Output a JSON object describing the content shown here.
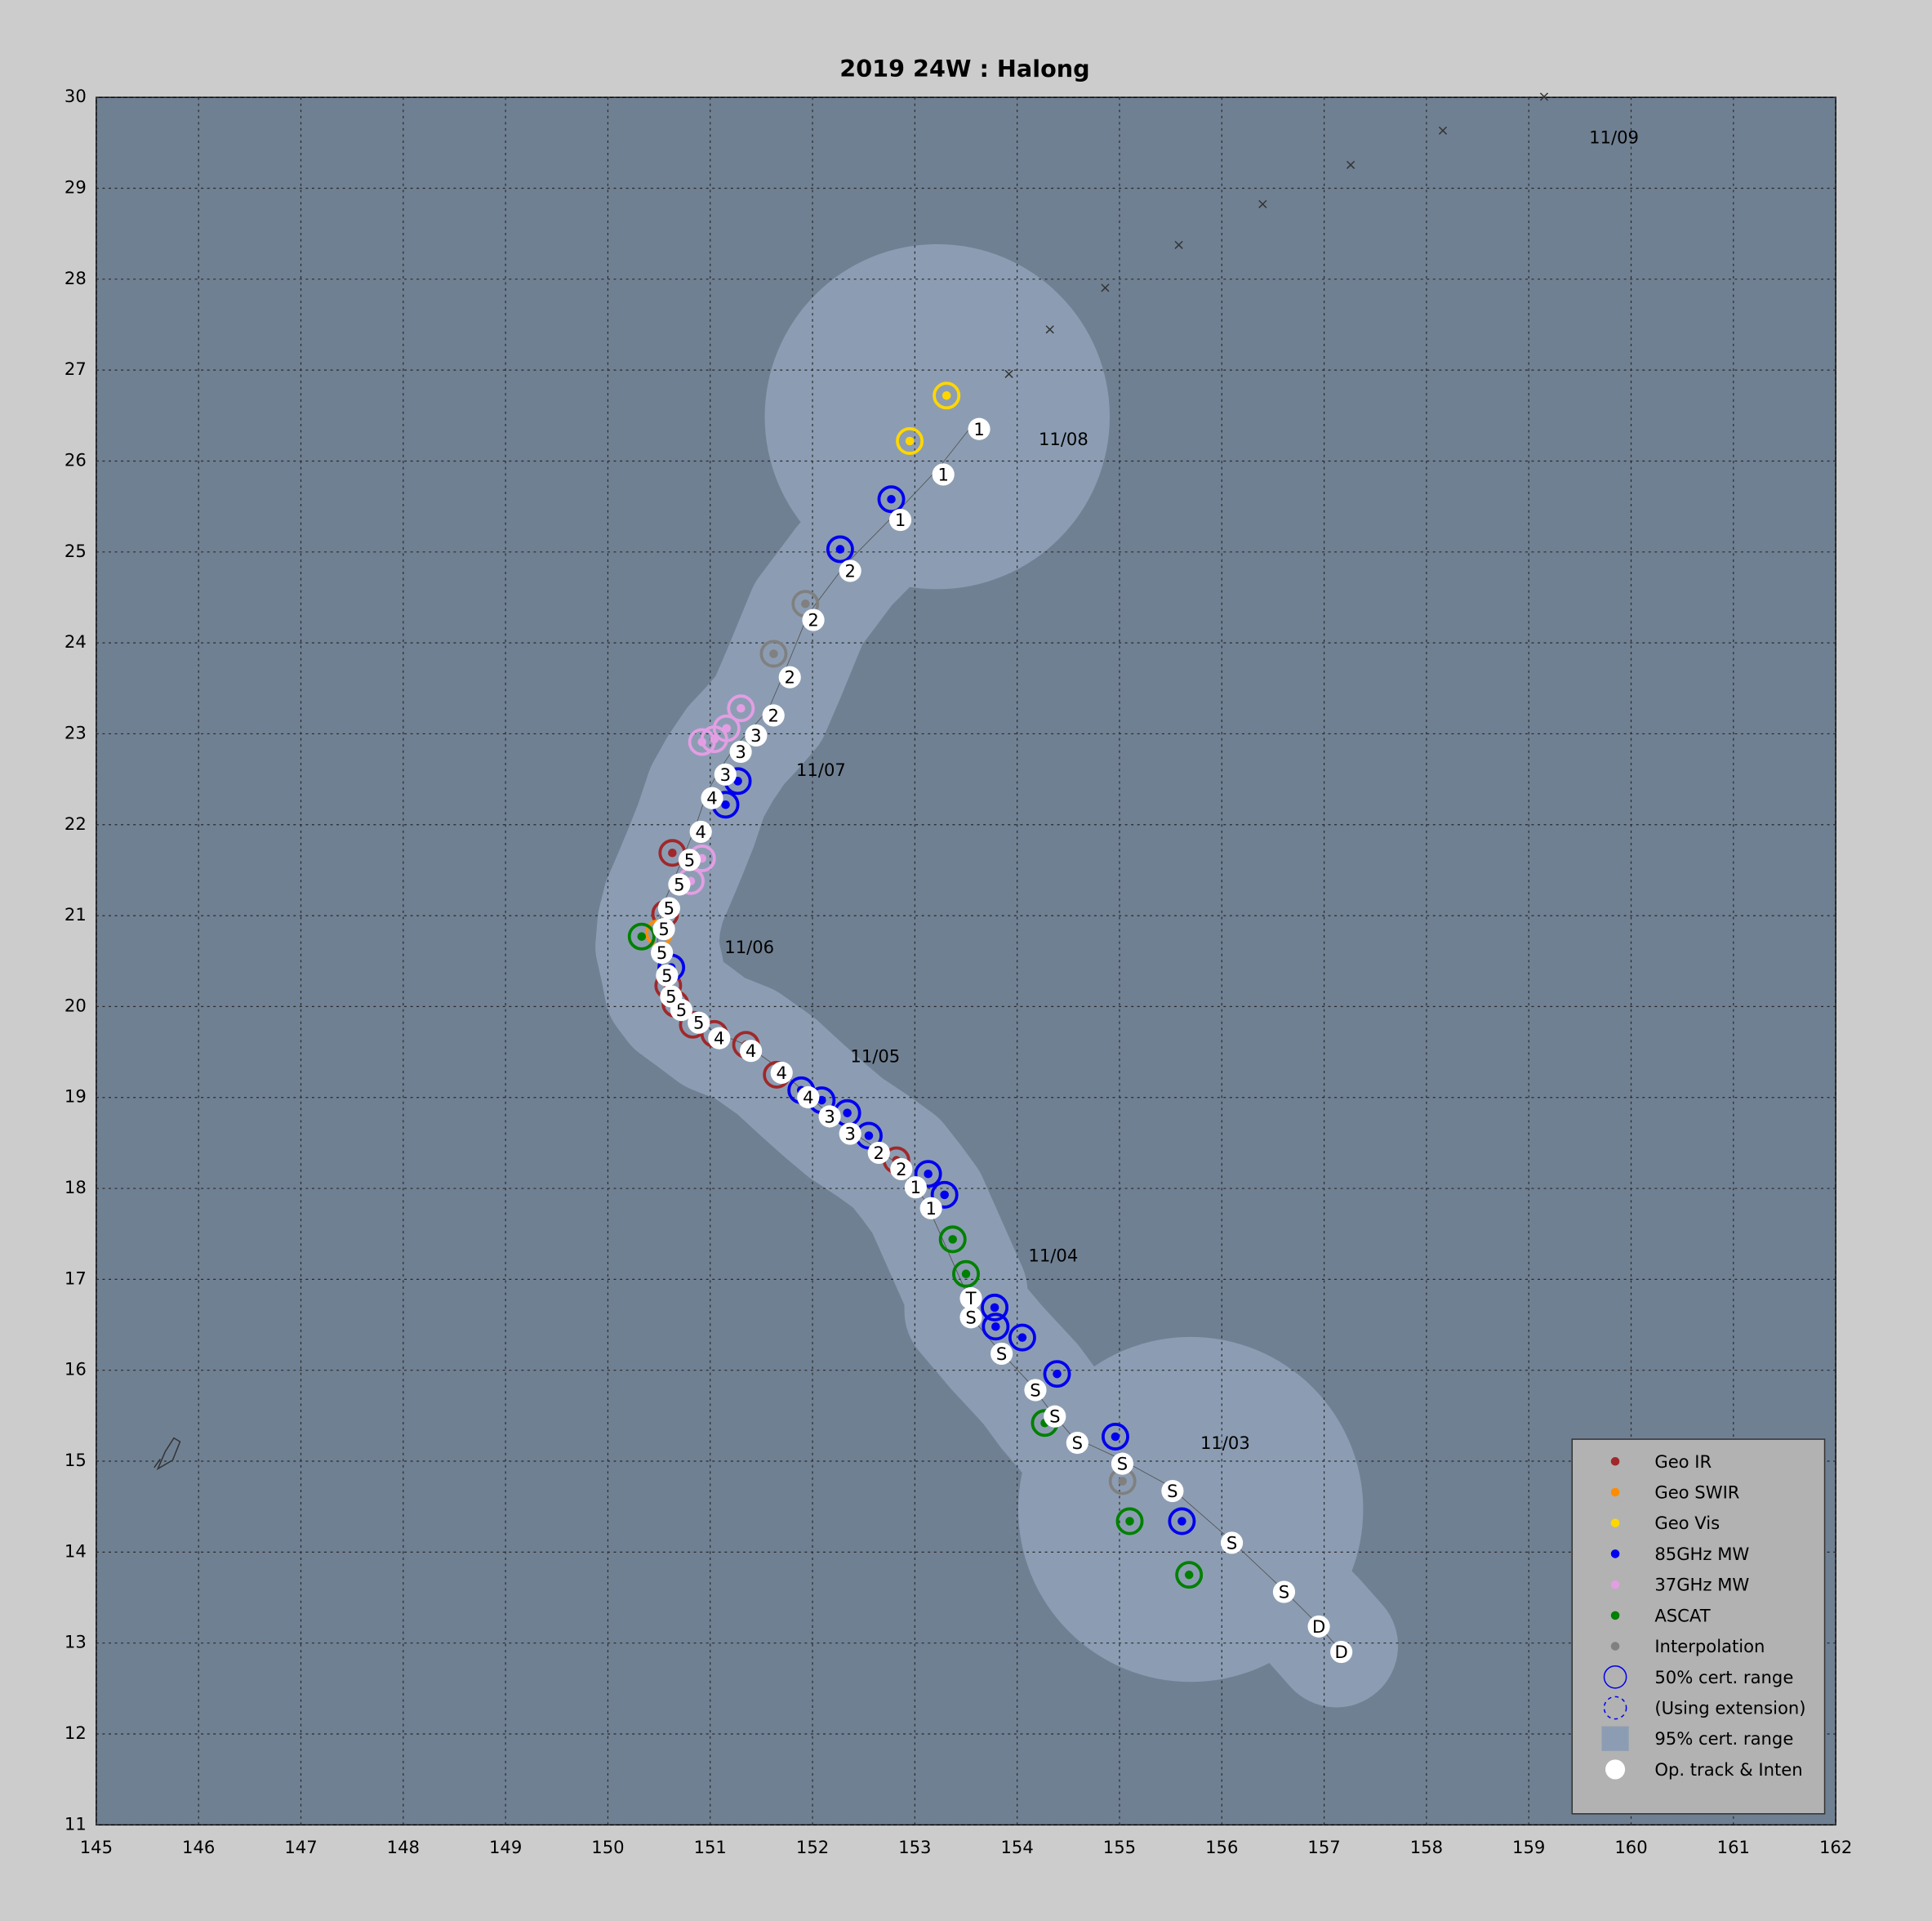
{
  "chart_data": {
    "type": "track",
    "title": "2019  24W :  Halong",
    "xlim": [
      145,
      162
    ],
    "ylim": [
      11,
      30
    ],
    "xticks": [
      145,
      146,
      147,
      148,
      149,
      150,
      151,
      152,
      153,
      154,
      155,
      156,
      157,
      158,
      159,
      160,
      161,
      162
    ],
    "yticks": [
      11,
      12,
      13,
      14,
      15,
      16,
      17,
      18,
      19,
      20,
      21,
      22,
      23,
      24,
      25,
      26,
      27,
      28,
      29,
      30
    ],
    "grid": true,
    "legend": "lower right",
    "series": [
      {
        "name": "Geo IR",
        "color": "#a0282a",
        "x": [
          152.82,
          151.65,
          151.35,
          151.04,
          150.83,
          150.66,
          150.59,
          150.56,
          150.63
        ],
        "y": [
          18.31,
          19.25,
          19.58,
          19.7,
          19.8,
          20.03,
          20.23,
          21.02,
          21.69
        ]
      },
      {
        "name": "Geo SWIR",
        "color": "#ff8c00",
        "x": [
          150.5
        ],
        "y": [
          20.81
        ]
      },
      {
        "name": "Geo Vis",
        "color": "#ffd700",
        "x": [
          153.31,
          152.95
        ],
        "y": [
          26.72,
          26.22
        ]
      },
      {
        "name": "85GHz MW",
        "color": "#0000ee",
        "x": [
          152.77,
          152.27,
          151.27,
          151.15,
          150.62,
          151.89,
          152.09,
          152.34,
          152.55,
          153.13,
          153.29,
          153.78,
          153.79,
          154.05,
          154.39,
          154.96,
          155.61
        ],
        "y": [
          25.58,
          25.03,
          22.48,
          22.22,
          20.43,
          19.08,
          18.97,
          18.83,
          18.58,
          18.16,
          17.93,
          16.69,
          16.48,
          16.36,
          15.96,
          15.27,
          14.34
        ]
      },
      {
        "name": "37GHz MW",
        "color": "#e39ee3",
        "x": [
          151.3,
          151.16,
          151.04,
          150.92,
          150.81,
          150.92
        ],
        "y": [
          23.28,
          23.06,
          22.94,
          22.91,
          21.38,
          21.63
        ]
      },
      {
        "name": "ASCAT",
        "color": "#008000",
        "x": [
          153.37,
          153.5,
          154.27,
          155.1,
          155.68,
          150.33
        ],
        "y": [
          17.44,
          17.06,
          15.42,
          14.34,
          13.75,
          20.77
        ]
      },
      {
        "name": "Interpolation",
        "color": "#808080",
        "x": [
          151.93,
          151.62,
          155.03
        ],
        "y": [
          24.43,
          23.88,
          14.78
        ]
      }
    ],
    "legend_extra": [
      "50% cert. range",
      "(Using extension)",
      "95% cert. range"
    ],
    "track": {
      "name": "Op. track & Inten",
      "x": [
        157.12,
        156.9,
        156.56,
        156.05,
        155.47,
        154.98,
        154.54,
        154.32,
        154.13,
        153.8,
        153.5,
        153.5,
        153.11,
        152.96,
        152.82,
        152.6,
        152.32,
        152.12,
        151.91,
        151.65,
        151.35,
        151.04,
        150.84,
        150.67,
        150.57,
        150.53,
        150.48,
        150.5,
        150.55,
        150.65,
        150.75,
        150.86,
        150.97,
        151.1,
        151.25,
        151.4,
        151.57,
        151.73,
        151.96,
        152.32,
        152.81,
        153.23,
        153.58
      ],
      "y": [
        12.97,
        13.25,
        13.63,
        14.17,
        14.74,
        15.04,
        15.27,
        15.56,
        15.85,
        16.25,
        16.65,
        16.86,
        17.85,
        18.08,
        18.28,
        18.46,
        18.67,
        18.86,
        19.07,
        19.34,
        19.58,
        19.72,
        19.89,
        20.03,
        20.18,
        20.41,
        20.66,
        20.92,
        21.15,
        21.41,
        21.68,
        21.99,
        22.36,
        22.62,
        22.87,
        23.05,
        23.27,
        23.69,
        24.32,
        24.86,
        25.42,
        25.92,
        26.42
      ],
      "labels": [
        "D",
        "D",
        "S",
        "S",
        "S",
        "S",
        "S",
        "S",
        "S",
        "S",
        "S",
        "T",
        "1",
        "1",
        "2",
        "2",
        "3",
        "3",
        "4",
        "4",
        "4",
        "4",
        "5",
        "5",
        "5",
        "5",
        "5",
        "5",
        "5",
        "5",
        "5",
        "4",
        "4",
        "3",
        "3",
        "3",
        "2",
        "2",
        "2",
        "2",
        "1",
        "1",
        "1"
      ]
    },
    "forecast": {
      "x": [
        159.15,
        158.16,
        157.26,
        156.4,
        155.58,
        154.86,
        154.32,
        153.92
      ],
      "y": [
        30.0,
        29.63,
        29.25,
        28.82,
        28.37,
        27.9,
        27.44,
        26.95
      ]
    },
    "dates": {
      "labels": [
        "11/03",
        "11/04",
        "11/05",
        "11/06",
        "11/07",
        "11/08",
        "11/09"
      ],
      "x": [
        155.79,
        154.11,
        152.37,
        151.14,
        151.84,
        154.21,
        159.59
      ],
      "y": [
        15.19,
        17.25,
        19.44,
        20.64,
        22.59,
        26.23,
        29.55
      ]
    }
  }
}
